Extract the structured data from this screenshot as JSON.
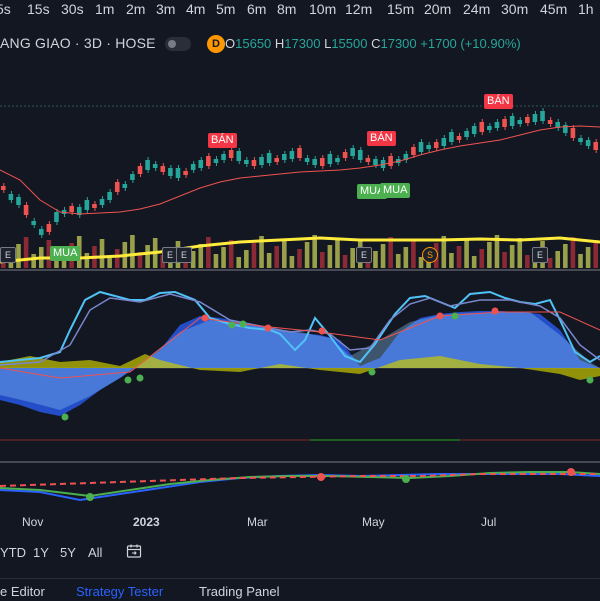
{
  "timeframes": [
    "5s",
    "15s",
    "30s",
    "1m",
    "2m",
    "3m",
    "4m",
    "5m",
    "6m",
    "8m",
    "10m",
    "12m",
    "15m",
    "20m",
    "24m",
    "30m",
    "45m",
    "1h"
  ],
  "symbol": {
    "name": "ANG GIAO · 3D · HOSE",
    "interval_badge": "D"
  },
  "ohlc": {
    "open_label": "O",
    "open": "15650",
    "high_label": "H",
    "high": "17300",
    "low_label": "L",
    "low": "15500",
    "close_label": "C",
    "close": "17300",
    "change": "+1700 (+10.90%)"
  },
  "signals": {
    "sell_label": "BÁN",
    "buy_label": "MUA",
    "event_label": "E",
    "split_label": "S"
  },
  "x_axis": {
    "months": [
      "Nov",
      "2023",
      "Mar",
      "May",
      "Jul"
    ]
  },
  "ranges": [
    "YTD",
    "1Y",
    "5Y",
    "All"
  ],
  "bottom_tabs": {
    "pine_editor": "e Editor",
    "strategy_tester": "Strategy Tester",
    "trading_panel": "Trading Panel"
  },
  "colors": {
    "background": "#131722",
    "up": "#26a69a",
    "down": "#ef5350",
    "accent": "#2962ff",
    "volume_ma": "#ffeb3b"
  },
  "icons": [
    "calendar-icon"
  ]
}
